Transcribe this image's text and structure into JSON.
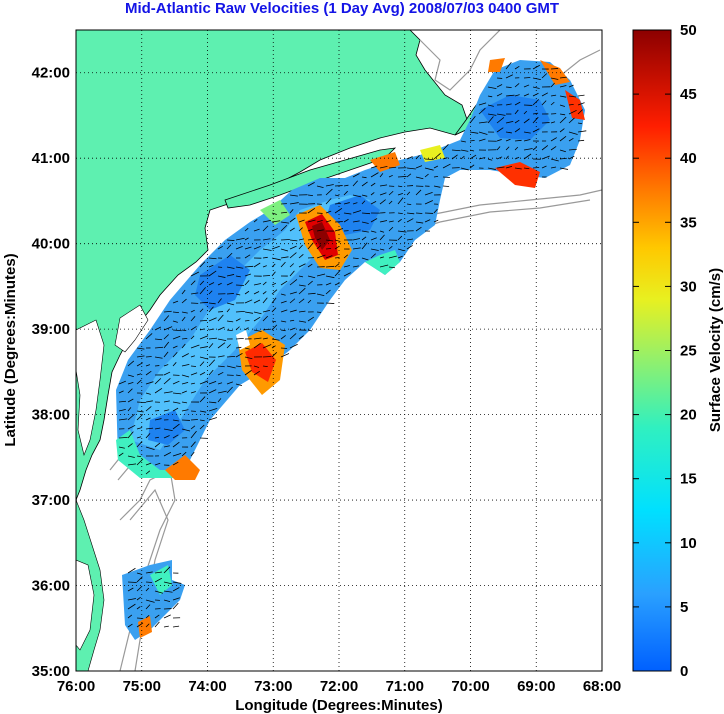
{
  "title": "Mid-Atlantic Raw Velocities (1 Day Avg) 2008/07/03 0400 GMT",
  "map": {
    "xlabel": "Longitude (Degrees:Minutes)",
    "ylabel": "Latitude (Degrees:Minutes)",
    "x_ticks": [
      "76:00",
      "75:00",
      "74:00",
      "73:00",
      "72:00",
      "71:00",
      "70:00",
      "69:00",
      "68:00"
    ],
    "y_ticks": [
      "35:00",
      "36:00",
      "37:00",
      "38:00",
      "39:00",
      "40:00",
      "41:00",
      "42:00"
    ],
    "lon_range": [
      -76,
      -68
    ],
    "lat_range": [
      35,
      42.5
    ],
    "land_color": "#5ef0b0",
    "grid": "dotted"
  },
  "colorbar": {
    "label": "Surface Velocity (cm/s)",
    "ticks": [
      "0",
      "5",
      "10",
      "15",
      "20",
      "25",
      "30",
      "35",
      "40",
      "45",
      "50"
    ],
    "range": [
      0,
      50
    ],
    "colormap": "jet"
  }
}
